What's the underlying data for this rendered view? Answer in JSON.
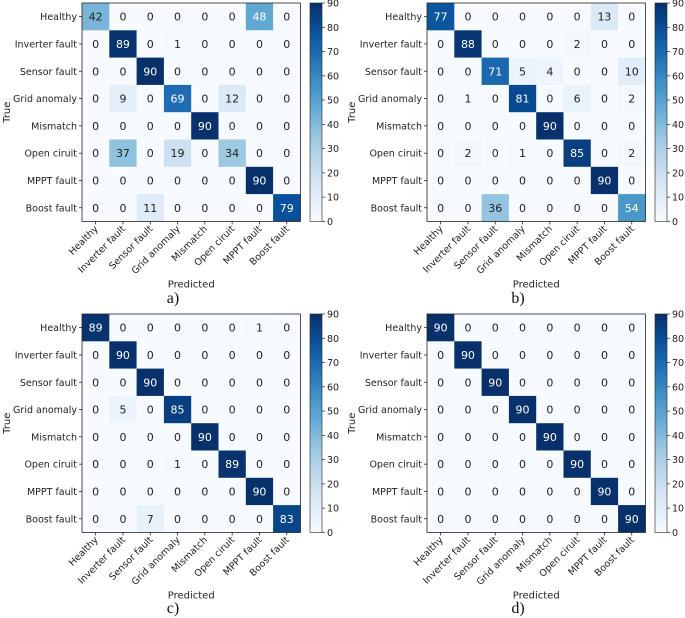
{
  "chart_data": [
    {
      "type": "heatmap",
      "panel_label": "a)",
      "xlabel": "Predicted",
      "ylabel": "True",
      "row_labels": [
        "Healthy",
        "Inverter fault",
        "Sensor fault",
        "Grid anomaly",
        "Mismatch",
        "Open ciruit",
        "MPPT fault",
        "Boost fault"
      ],
      "col_labels": [
        "Healthy",
        "Inverter fault",
        "Sensor fault",
        "Grid anomaly",
        "Mismatch",
        "Open ciruit",
        "MPPT fault",
        "Boost fault"
      ],
      "matrix": [
        [
          42,
          0,
          0,
          0,
          0,
          0,
          48,
          0
        ],
        [
          0,
          89,
          0,
          1,
          0,
          0,
          0,
          0
        ],
        [
          0,
          0,
          90,
          0,
          0,
          0,
          0,
          0
        ],
        [
          0,
          9,
          0,
          69,
          0,
          12,
          0,
          0
        ],
        [
          0,
          0,
          0,
          0,
          90,
          0,
          0,
          0
        ],
        [
          0,
          37,
          0,
          19,
          0,
          34,
          0,
          0
        ],
        [
          0,
          0,
          0,
          0,
          0,
          0,
          90,
          0
        ],
        [
          0,
          0,
          11,
          0,
          0,
          0,
          0,
          79
        ]
      ],
      "colorbar": {
        "ticks": [
          0,
          10,
          20,
          30,
          40,
          50,
          60,
          70,
          80,
          90
        ],
        "range": [
          0,
          90
        ],
        "colormap": "Blues"
      }
    },
    {
      "type": "heatmap",
      "panel_label": "b)",
      "xlabel": "Predicted",
      "ylabel": "True",
      "row_labels": [
        "Healthy",
        "Inverter fault",
        "Sensor fault",
        "Grid anomaly",
        "Mismatch",
        "Open ciruit",
        "MPPT fault",
        "Boost fault"
      ],
      "col_labels": [
        "Healthy",
        "Inverter fault",
        "Sensor fault",
        "Grid anomaly",
        "Mismatch",
        "Open ciruit",
        "MPPT fault",
        "Boost fault"
      ],
      "matrix": [
        [
          77,
          0,
          0,
          0,
          0,
          0,
          13,
          0
        ],
        [
          0,
          88,
          0,
          0,
          0,
          2,
          0,
          0
        ],
        [
          0,
          0,
          71,
          5,
          4,
          0,
          0,
          10
        ],
        [
          0,
          1,
          0,
          81,
          0,
          6,
          0,
          2
        ],
        [
          0,
          0,
          0,
          0,
          90,
          0,
          0,
          0
        ],
        [
          0,
          2,
          0,
          1,
          0,
          85,
          0,
          2
        ],
        [
          0,
          0,
          0,
          0,
          0,
          0,
          90,
          0
        ],
        [
          0,
          0,
          36,
          0,
          0,
          0,
          0,
          54
        ]
      ],
      "colorbar": {
        "ticks": [
          0,
          10,
          20,
          30,
          40,
          50,
          60,
          70,
          80,
          90
        ],
        "range": [
          0,
          90
        ],
        "colormap": "Blues"
      }
    },
    {
      "type": "heatmap",
      "panel_label": "c)",
      "xlabel": "Predicted",
      "ylabel": "True",
      "row_labels": [
        "Healthy",
        "Inverter fault",
        "Sensor fault",
        "Grid anomaly",
        "Mismatch",
        "Open ciruit",
        "MPPT fault",
        "Boost fault"
      ],
      "col_labels": [
        "Healthy",
        "Inverter fault",
        "Sensor fault",
        "Grid anomaly",
        "Mismatch",
        "Open ciruit",
        "MPPT fault",
        "Boost fault"
      ],
      "matrix": [
        [
          89,
          0,
          0,
          0,
          0,
          0,
          1,
          0
        ],
        [
          0,
          90,
          0,
          0,
          0,
          0,
          0,
          0
        ],
        [
          0,
          0,
          90,
          0,
          0,
          0,
          0,
          0
        ],
        [
          0,
          5,
          0,
          85,
          0,
          0,
          0,
          0
        ],
        [
          0,
          0,
          0,
          0,
          90,
          0,
          0,
          0
        ],
        [
          0,
          0,
          0,
          1,
          0,
          89,
          0,
          0
        ],
        [
          0,
          0,
          0,
          0,
          0,
          0,
          90,
          0
        ],
        [
          0,
          0,
          7,
          0,
          0,
          0,
          0,
          83
        ]
      ],
      "colorbar": {
        "ticks": [
          0,
          10,
          20,
          30,
          40,
          50,
          60,
          70,
          80,
          90
        ],
        "range": [
          0,
          90
        ],
        "colormap": "Blues"
      }
    },
    {
      "type": "heatmap",
      "panel_label": "d)",
      "xlabel": "Predicted",
      "ylabel": "True",
      "row_labels": [
        "Healthy",
        "Inverter fault",
        "Sensor fault",
        "Grid anomaly",
        "Mismatch",
        "Open ciruit",
        "MPPT fault",
        "Boost fault"
      ],
      "col_labels": [
        "Healthy",
        "Inverter fault",
        "Sensor fault",
        "Grid anomaly",
        "Mismatch",
        "Open ciruit",
        "MPPT fault",
        "Boost fault"
      ],
      "matrix": [
        [
          90,
          0,
          0,
          0,
          0,
          0,
          0,
          0
        ],
        [
          0,
          90,
          0,
          0,
          0,
          0,
          0,
          0
        ],
        [
          0,
          0,
          90,
          0,
          0,
          0,
          0,
          0
        ],
        [
          0,
          0,
          0,
          90,
          0,
          0,
          0,
          0
        ],
        [
          0,
          0,
          0,
          0,
          90,
          0,
          0,
          0
        ],
        [
          0,
          0,
          0,
          0,
          0,
          90,
          0,
          0
        ],
        [
          0,
          0,
          0,
          0,
          0,
          0,
          90,
          0
        ],
        [
          0,
          0,
          0,
          0,
          0,
          0,
          0,
          90
        ]
      ],
      "colorbar": {
        "ticks": [
          0,
          10,
          20,
          30,
          40,
          50,
          60,
          70,
          80,
          90
        ],
        "range": [
          0,
          90
        ],
        "colormap": "Blues"
      }
    }
  ]
}
